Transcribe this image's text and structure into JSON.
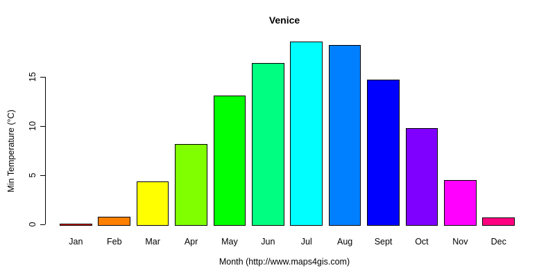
{
  "chart_data": {
    "type": "bar",
    "title": "Venice",
    "xlabel": "Month (http://www.maps4gis.com)",
    "ylabel": "Min Temperature (°C)",
    "categories": [
      "Jan",
      "Feb",
      "Mar",
      "Apr",
      "May",
      "Jun",
      "Jul",
      "Aug",
      "Sept",
      "Oct",
      "Nov",
      "Dec"
    ],
    "values": [
      0.1,
      0.8,
      4.4,
      8.2,
      13.1,
      16.4,
      18.6,
      18.2,
      14.7,
      9.8,
      4.5,
      0.7
    ],
    "bar_colors": [
      "#FF0000",
      "#FF8000",
      "#FFFF00",
      "#80FF00",
      "#00FF00",
      "#00FF80",
      "#00FFFF",
      "#0080FF",
      "#0000FF",
      "#8000FF",
      "#FF00FF",
      "#FF0080"
    ],
    "bar_border_color": "#000000",
    "yticks": [
      0,
      5,
      10,
      15
    ],
    "ylim": [
      0,
      18.6
    ],
    "grid": false,
    "legend": "none",
    "background_color": "#FFFFFF",
    "text_color": "#000000",
    "axis_color": "#000000"
  }
}
